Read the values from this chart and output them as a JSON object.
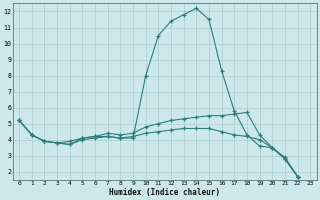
{
  "xlabel": "Humidex (Indice chaleur)",
  "bg_color": "#cce8ea",
  "grid_color": "#aacccc",
  "line_color": "#2e7d7d",
  "xlim": [
    -0.5,
    23.5
  ],
  "ylim": [
    1.5,
    12.5
  ],
  "xticks": [
    0,
    1,
    2,
    3,
    4,
    5,
    6,
    7,
    8,
    9,
    10,
    11,
    12,
    13,
    14,
    15,
    16,
    17,
    18,
    19,
    20,
    21,
    22,
    23
  ],
  "yticks": [
    2,
    3,
    4,
    5,
    6,
    7,
    8,
    9,
    10,
    11,
    12
  ],
  "series1_x": [
    0,
    1,
    2,
    3,
    4,
    5,
    6,
    7,
    8,
    9,
    10,
    11,
    12,
    13,
    14,
    15,
    16,
    17,
    18,
    19,
    20,
    21,
    22
  ],
  "series1_y": [
    5.2,
    4.3,
    3.9,
    3.8,
    3.7,
    4.1,
    4.2,
    4.2,
    4.1,
    4.1,
    8.0,
    10.5,
    11.4,
    11.8,
    12.2,
    11.5,
    8.3,
    5.8,
    4.3,
    3.6,
    3.5,
    2.9,
    1.7
  ],
  "series2_x": [
    0,
    1,
    2,
    3,
    4,
    5,
    6,
    7,
    8,
    9,
    10,
    11,
    12,
    13,
    14,
    15,
    16,
    17,
    18,
    19,
    20,
    21,
    22
  ],
  "series2_y": [
    5.2,
    4.3,
    3.9,
    3.8,
    3.9,
    4.1,
    4.2,
    4.4,
    4.3,
    4.4,
    4.8,
    5.0,
    5.2,
    5.3,
    5.4,
    5.5,
    5.5,
    5.6,
    5.7,
    4.3,
    3.5,
    2.8,
    1.7
  ],
  "series3_x": [
    0,
    1,
    2,
    3,
    4,
    5,
    6,
    7,
    8,
    9,
    10,
    11,
    12,
    13,
    14,
    15,
    16,
    17,
    18,
    19,
    20,
    21,
    22
  ],
  "series3_y": [
    5.2,
    4.3,
    3.9,
    3.8,
    3.7,
    4.0,
    4.1,
    4.2,
    4.1,
    4.2,
    4.4,
    4.5,
    4.6,
    4.7,
    4.7,
    4.7,
    4.5,
    4.3,
    4.2,
    4.0,
    3.5,
    2.8,
    1.7
  ]
}
